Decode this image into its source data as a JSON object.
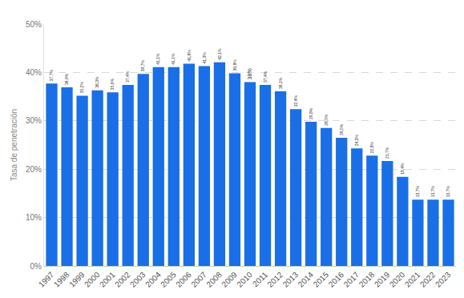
{
  "chart_data": {
    "type": "bar",
    "y_label": "Tasa de penetración",
    "categories": [
      "1997",
      "1998",
      "1999",
      "2000",
      "2001",
      "2002",
      "2003",
      "2004",
      "2005",
      "2006",
      "2007",
      "2008",
      "2009",
      "2010",
      "2011",
      "2012",
      "2013",
      "2014",
      "2015",
      "2016",
      "2017",
      "2018",
      "2019",
      "2020",
      "2021",
      "2022",
      "2023"
    ],
    "values": [
      37.7,
      36.9,
      35.2,
      36.3,
      35.9,
      37.4,
      39.7,
      41.1,
      41.1,
      41.8,
      41.3,
      42.1,
      39.8,
      38,
      37.4,
      36.1,
      32.4,
      29.8,
      28.5,
      26.5,
      24.3,
      22.8,
      21.7,
      18.4,
      13.7,
      13.7,
      13.7
    ],
    "value_labels": [
      "37,7%",
      "36,9%",
      "35,2%",
      "36,3%",
      "35,9%",
      "37,4%",
      "39,7%",
      "41,1%",
      "41,1%",
      "41,8%",
      "41,3%",
      "42,1%",
      "39,8%",
      "38%",
      "37,4%",
      "36,1%",
      "32,4%",
      "29,8%",
      "28,5%",
      "26,5%",
      "24,3%",
      "22,8%",
      "21,7%",
      "18,4%",
      "13,7%",
      "13,7%",
      "13,7%"
    ],
    "data_labels": true,
    "color": "#1a6fe6",
    "ylim": [
      0,
      50
    ],
    "yticks": [
      {
        "value": 0,
        "label": "0%"
      },
      {
        "value": 10,
        "label": "10%"
      },
      {
        "value": 20,
        "label": "20%"
      },
      {
        "value": 30,
        "label": "30%"
      },
      {
        "value": 40,
        "label": "40%"
      },
      {
        "value": 50,
        "label": "50%"
      }
    ],
    "grid": true
  }
}
